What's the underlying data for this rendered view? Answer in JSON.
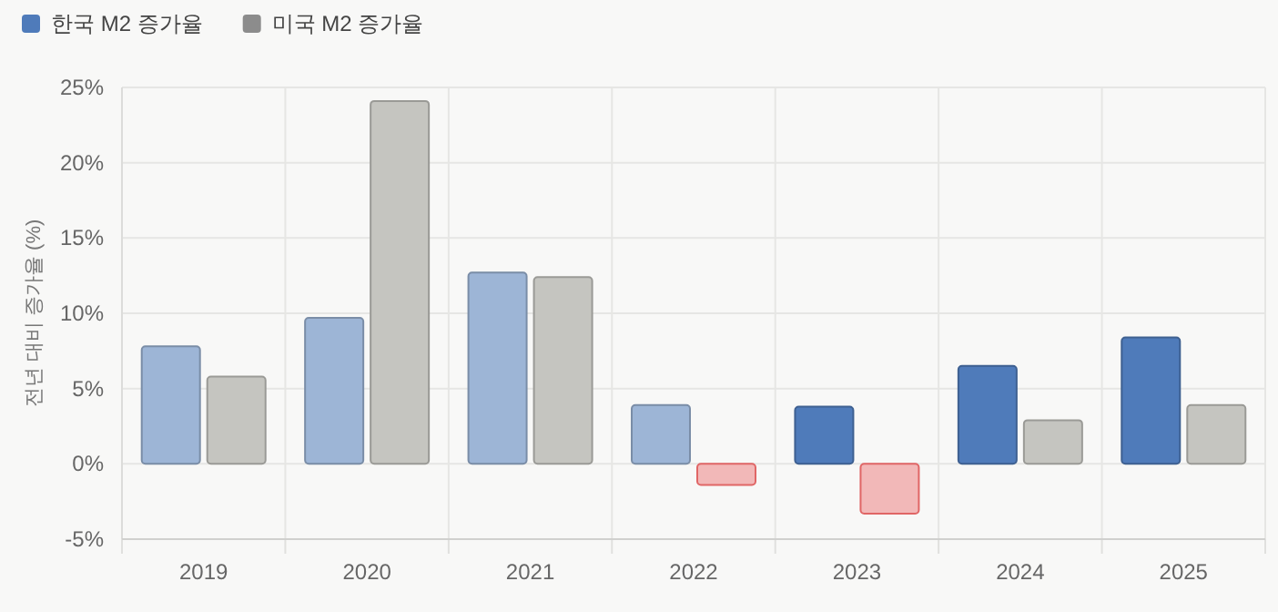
{
  "chart_data": {
    "type": "bar",
    "categories": [
      "2019",
      "2020",
      "2021",
      "2022",
      "2023",
      "2024",
      "2025"
    ],
    "ylabel": "전년 대비 증가율 (%)",
    "ylim": [
      -5,
      25
    ],
    "yticks": [
      {
        "value": -5,
        "label": "-5%"
      },
      {
        "value": 0,
        "label": "0%"
      },
      {
        "value": 5,
        "label": "5%"
      },
      {
        "value": 10,
        "label": "10%"
      },
      {
        "value": 15,
        "label": "15%"
      },
      {
        "value": 20,
        "label": "20%"
      },
      {
        "value": 25,
        "label": "25%"
      }
    ],
    "grid": true,
    "legend": "top left",
    "series": [
      {
        "name": "한국 M2 증가율",
        "color": "#4f7bba",
        "colors": [
          "#9db5d6",
          "#9db5d6",
          "#9db5d6",
          "#9db5d6",
          "#4f7bba",
          "#4f7bba",
          "#4f7bba"
        ],
        "values": [
          7.8,
          9.7,
          12.7,
          3.9,
          3.8,
          6.5,
          8.4
        ]
      },
      {
        "name": "미국 M2 증가율",
        "color": "#8c8c8c",
        "colors": [
          "#c5c5c0",
          "#c5c5c0",
          "#c5c5c0",
          "#f2b8b8",
          "#f2b8b8",
          "#c5c5c0",
          "#c5c5c0"
        ],
        "values": [
          5.8,
          24.1,
          12.4,
          -1.4,
          -3.3,
          2.9,
          3.9
        ]
      }
    ]
  }
}
